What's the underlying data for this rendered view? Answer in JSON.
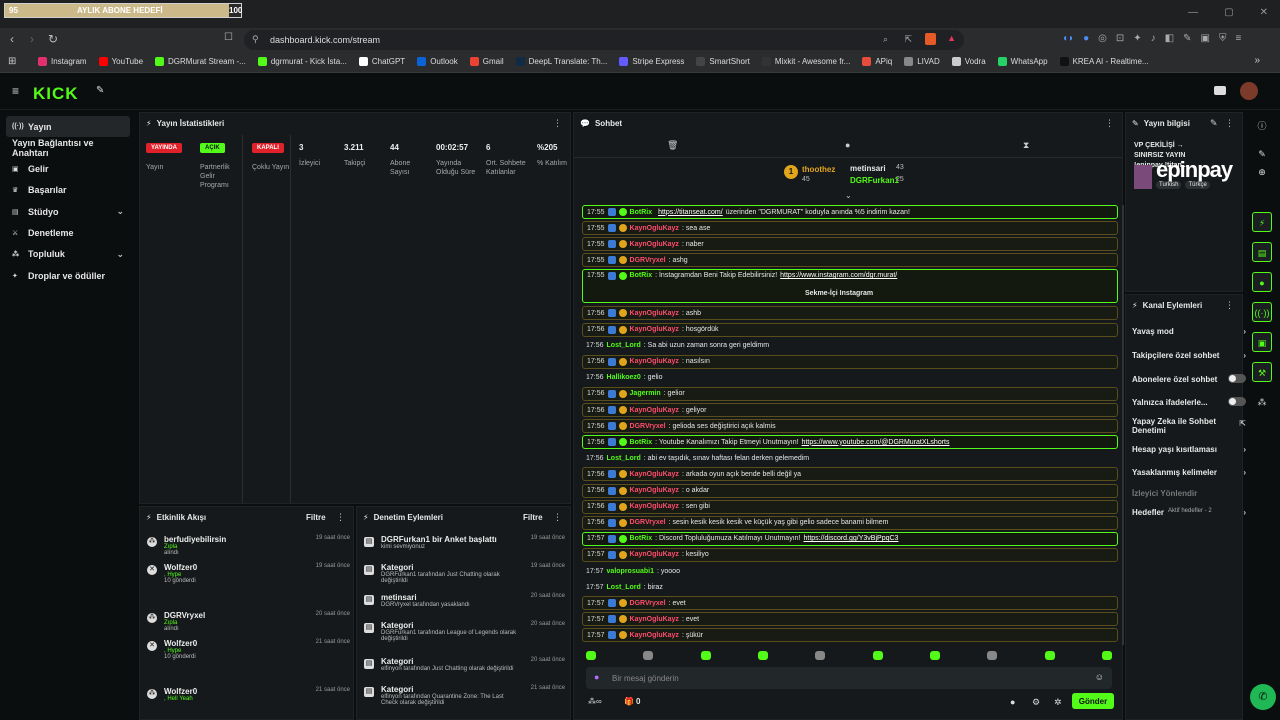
{
  "browser": {
    "goal_bar": {
      "left": "95",
      "label": "AYLIK ABONE HEDEFİ",
      "right": "100",
      "progress": 0.95
    },
    "url": "dashboard.kick.com/stream",
    "bookmarks": [
      {
        "label": "Instagram",
        "color": "#e1306c"
      },
      {
        "label": "YouTube",
        "color": "#ff0000"
      },
      {
        "label": "DGRMurat Stream -...",
        "color": "#53fc18"
      },
      {
        "label": "dgrmurat - Kick İsta...",
        "color": "#53fc18"
      },
      {
        "label": "ChatGPT",
        "color": "#ffffff"
      },
      {
        "label": "Outlook",
        "color": "#0a64d8"
      },
      {
        "label": "Gmail",
        "color": "#ea4335"
      },
      {
        "label": "DeepL Translate: Th...",
        "color": "#0f2b46"
      },
      {
        "label": "Stripe Express",
        "color": "#635bff"
      },
      {
        "label": "SmartShort",
        "color": "#444444"
      },
      {
        "label": "Mixkit - Awesome fr...",
        "color": "#333333"
      },
      {
        "label": "APiq",
        "color": "#e74c3c"
      },
      {
        "label": "LIVAD",
        "color": "#888888"
      },
      {
        "label": "Vodra",
        "color": "#cccccc"
      },
      {
        "label": "WhatsApp",
        "color": "#25d366"
      },
      {
        "label": "KREA AI - Realtime...",
        "color": "#111111"
      }
    ]
  },
  "kick": {
    "logo": "KICK"
  },
  "sidebar": [
    {
      "label": "Yayın",
      "icon": "broadcast-icon",
      "active": true
    },
    {
      "label": "Yayın Bağlantısı ve Anahtarı",
      "icon": "",
      "active": false
    },
    {
      "label": "Gelir",
      "icon": "money-icon",
      "active": false
    },
    {
      "label": "Başarılar",
      "icon": "trophy-icon",
      "active": false
    },
    {
      "label": "Stüdyo",
      "icon": "studio-icon",
      "active": false,
      "chev": true
    },
    {
      "label": "Denetleme",
      "icon": "sword-icon",
      "active": false
    },
    {
      "label": "Topluluk",
      "icon": "community-icon",
      "active": false,
      "chev": true
    },
    {
      "label": "Droplar ve ödüller",
      "icon": "drops-icon",
      "active": false
    }
  ],
  "stats": {
    "title": "Yayın İstatistikleri",
    "badges": [
      {
        "text": "YAYINDA",
        "label": "Yayın",
        "color": "#e0202a"
      },
      {
        "text": "AÇIK",
        "label": "Partnerlik Gelir Programı",
        "color": "#53fc18"
      },
      {
        "text": "KAPALI",
        "label": "Çoklu Yayın",
        "color": "#e0202a"
      }
    ],
    "values": [
      {
        "value": "3",
        "label": "İzleyici"
      },
      {
        "value": "3.211",
        "label": "Takipçi"
      },
      {
        "value": "44",
        "label": "Abone Sayısı"
      },
      {
        "value": "00:02:57",
        "label": "Yayında Olduğu Süre"
      },
      {
        "value": "6",
        "label": "Ort. Sohbete Katılanlar"
      },
      {
        "value": "%205",
        "label": "% Katılım"
      }
    ]
  },
  "activity": {
    "title": "Etkinlik Akışı",
    "filter": "Filtre",
    "items": [
      {
        "name": "berfudiyebilirsin",
        "sub": "Zıpla",
        "sub2": "alındı",
        "time": "19 saat önce"
      },
      {
        "name": "Wolfzer0",
        "sub": ", Hype",
        "sub2": "10 gönderdi",
        "time": "19 saat önce"
      },
      {
        "name": "DGRVryxel",
        "sub": "Zıpla",
        "sub2": "alındı",
        "time": "20 saat önce"
      },
      {
        "name": "Wolfzer0",
        "sub": ", Hype",
        "sub2": "10 gönderdi",
        "time": "21 saat önce"
      },
      {
        "name": "Wolfzer0",
        "sub": ", Hell Yeah",
        "sub2": "",
        "time": "21 saat önce"
      }
    ]
  },
  "moderation": {
    "title": "Denetim Eylemleri",
    "filter": "Filtre",
    "items": [
      {
        "name": "DGRFurkan1 bir Anket başlattı",
        "sub": "kimi sevmiyonuz",
        "time": "19 saat önce"
      },
      {
        "name": "Kategori",
        "sub": "DGRFurkan1 tarafından Just Chatting olarak değiştirildi",
        "time": "19 saat önce"
      },
      {
        "name": "metinsari",
        "sub": "DGRVryxel tarafından yasaklandı",
        "time": "20 saat önce"
      },
      {
        "name": "Kategori",
        "sub": "DGRFurkan1 tarafından League of Legends olarak değiştirildi",
        "time": "20 saat önce"
      },
      {
        "name": "Kategori",
        "sub": "elfinyon tarafından Just Chatting olarak değiştirildi",
        "time": "20 saat önce"
      },
      {
        "name": "Kategori",
        "sub": "elfinyon tarafından Quarantine Zone: The Last Check olarak değiştirildi",
        "time": "21 saat önce"
      }
    ]
  },
  "chat": {
    "title": "Sohbet",
    "top_gifters": [
      {
        "rank": "1",
        "name": "thoothez",
        "count": "45"
      },
      {
        "rank": "",
        "name": "metinsari",
        "count": "43"
      },
      {
        "rank": "",
        "name": "DGRFurkan1",
        "count": "25"
      }
    ],
    "messages": [
      {
        "t": "17:55",
        "u": "BotRix",
        "uc": "#53fc18",
        "m": "",
        "link": "https://titanseat.com/",
        "m2": " üzerinden \"DGRMURAT\" koduyla anında %5 indirim kazan!",
        "style": "green"
      },
      {
        "t": "17:55",
        "u": "KaynOgluKayz",
        "uc": "#ff4d6d",
        "m": ": sea ase",
        "style": "gold"
      },
      {
        "t": "17:55",
        "u": "KaynOgluKayz",
        "uc": "#ff4d6d",
        "m": ": naber",
        "style": "gold"
      },
      {
        "t": "17:55",
        "u": "DGRVryxel",
        "uc": "#ff4d6d",
        "m": ": ashg",
        "style": "gold"
      },
      {
        "t": "17:55",
        "u": "BotRix",
        "uc": "#53fc18",
        "m": ": İnstagramdan Beni Takip Edebilirsiniz! ",
        "link": "https://www.instagram.com/dgr.murat/",
        "style": "green-big"
      },
      {
        "t": "17:56",
        "u": "KaynOgluKayz",
        "uc": "#ff4d6d",
        "m": ": ashb",
        "style": "gold"
      },
      {
        "t": "17:56",
        "u": "KaynOgluKayz",
        "uc": "#ff4d6d",
        "m": ": hosgördük",
        "style": "gold"
      },
      {
        "t": "17:56",
        "u": "Lost_Lord",
        "uc": "#53fc18",
        "m": ": Sa abi uzun zaman sonra geri geldimm",
        "style": ""
      },
      {
        "t": "17:56",
        "u": "KaynOgluKayz",
        "uc": "#ff4d6d",
        "m": ": nasılsın",
        "style": "gold"
      },
      {
        "t": "17:56",
        "u": "Hallikoez0",
        "uc": "#53fc18",
        "m": ": gelio",
        "style": ""
      },
      {
        "t": "17:56",
        "u": "Jagermin",
        "uc": "#53fc18",
        "m": ": gelior",
        "style": "gold"
      },
      {
        "t": "17:56",
        "u": "KaynOgluKayz",
        "uc": "#ff4d6d",
        "m": ": geliyor",
        "style": "gold"
      },
      {
        "t": "17:56",
        "u": "DGRVryxel",
        "uc": "#ff4d6d",
        "m": ": gelioda ses değiştirici açık kalmis",
        "style": "gold"
      },
      {
        "t": "17:56",
        "u": "BotRix",
        "uc": "#53fc18",
        "m": ": Youtube Kanalımızı Takip Etmeyi Unutmayın! ",
        "link": "https://www.youtube.com/@DGRMuratXLshorts",
        "style": "green"
      },
      {
        "t": "17:56",
        "u": "Lost_Lord",
        "uc": "#53fc18",
        "m": ": abi ev taşıdık, sınav haftası felan derken gelemedim",
        "style": ""
      },
      {
        "t": "17:56",
        "u": "KaynOgluKayz",
        "uc": "#ff4d6d",
        "m": ": arkada oyun açık bende belli değil ya",
        "style": "gold"
      },
      {
        "t": "17:56",
        "u": "KaynOgluKayz",
        "uc": "#ff4d6d",
        "m": ": o akdar",
        "style": "gold"
      },
      {
        "t": "17:56",
        "u": "KaynOgluKayz",
        "uc": "#ff4d6d",
        "m": ": sen gibi",
        "style": "gold"
      },
      {
        "t": "17:56",
        "u": "DGRVryxel",
        "uc": "#ff4d6d",
        "m": ": sesin kesik kesik kesik ve küçük yaş gibi gelio sadece banami bilmem",
        "style": "gold"
      },
      {
        "t": "17:57",
        "u": "BotRix",
        "uc": "#53fc18",
        "m": ": Discord Topluluğumuza Katılmayı Unutmayın! ",
        "link": "https://discord.gg/Y3vBjPpqC3",
        "style": "green"
      },
      {
        "t": "17:57",
        "u": "KaynOgluKayz",
        "uc": "#ff4d6d",
        "m": ": kesiliyo",
        "style": "gold"
      },
      {
        "t": "17:57",
        "u": "valoprosuabi1",
        "uc": "#53fc18",
        "m": ": yoooo",
        "style": ""
      },
      {
        "t": "17:57",
        "u": "Lost_Lord",
        "uc": "#53fc18",
        "m": ": biraz",
        "style": ""
      },
      {
        "t": "17:57",
        "u": "DGRVryxel",
        "uc": "#ff4d6d",
        "m": ": evet",
        "style": "gold"
      },
      {
        "t": "17:57",
        "u": "KaynOgluKayz",
        "uc": "#ff4d6d",
        "m": ": evet",
        "style": "gold"
      },
      {
        "t": "17:57",
        "u": "KaynOgluKayz",
        "uc": "#ff4d6d",
        "m": ": şükür",
        "style": "gold"
      }
    ],
    "instagram_button": "Sekme-İçi Instagram",
    "input_placeholder": "Bir mesaj gönderin",
    "points": "0",
    "send": "Gönder"
  },
  "stream_info": {
    "title": "Yayın bilgisi",
    "stream_title": "VP ÇEKİLİŞİ → SINIRSIZ YAYIN !epinpay !titan...",
    "tags": [
      "Turkish",
      "Türkçe"
    ],
    "overlay": "epinpay"
  },
  "channel_actions": {
    "title": "Kanal Eylemleri",
    "items": [
      {
        "label": "Yavaş mod",
        "type": "arrow"
      },
      {
        "label": "Takipçilere özel sohbet",
        "type": "arrow"
      },
      {
        "label": "Abonelere özel sohbet",
        "type": "toggle"
      },
      {
        "label": "Yalnızca ifadelerle...",
        "type": "toggle"
      },
      {
        "label": "Yapay Zeka ile Sohbet Denetimi",
        "type": "ext"
      },
      {
        "label": "Hesap yaşı kısıtlaması",
        "type": "arrow"
      },
      {
        "label": "Yasaklanmış kelimeler",
        "type": "arrow"
      },
      {
        "label": "İzleyici Yönlendir",
        "type": "none"
      },
      {
        "label": "Hedefler",
        "type": "goal",
        "extra": "Aktif hedefler - 2"
      }
    ]
  }
}
